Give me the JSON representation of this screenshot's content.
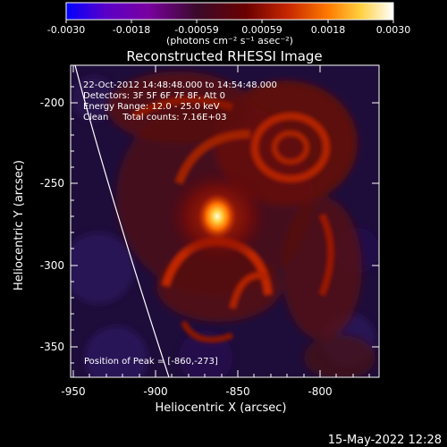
{
  "colorbar": {
    "ticks": [
      "-0.0030",
      "-0.0018",
      "-0.00059",
      "0.00059",
      "0.0018",
      "0.0030"
    ],
    "unit_label": "(photons cm⁻² s⁻¹ asec⁻²)",
    "colors": [
      "#0000ff",
      "#7a00a8",
      "#3a0a2a",
      "#5a0000",
      "#c03000",
      "#ff8a00",
      "#ffff80",
      "#ffffff"
    ]
  },
  "plot": {
    "title": "Reconstructed RHESSI Image",
    "xlabel": "Heliocentric X (arcsec)",
    "ylabel": "Heliocentric Y (arcsec)",
    "xticks": [
      "-950",
      "-900",
      "-850",
      "-800"
    ],
    "yticks": [
      "-200",
      "-250",
      "-300",
      "-350"
    ],
    "info": [
      "22-Oct-2012 14:48:48.000 to 14:54:48.000",
      "Detectors: 3F 5F 6F 7F 8F, Att 0",
      "Energy Range: 12.0 - 25.0 keV",
      "Clean     Total counts: 7.16E+03"
    ],
    "peak_label": "Position of Peak = [-860,-273]"
  },
  "footer": {
    "date": "15-May-2022 12:28"
  }
}
